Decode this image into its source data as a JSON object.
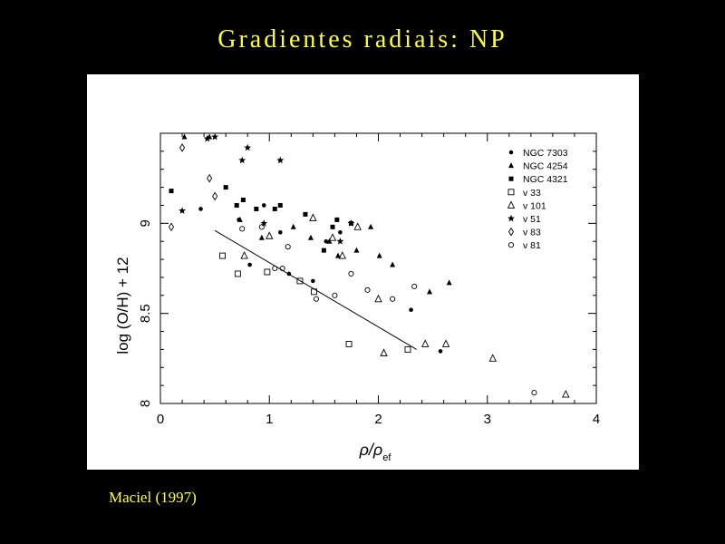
{
  "slide": {
    "title": "Gradientes radiais: NP",
    "credit": "Maciel  (1997)"
  },
  "chart_data": {
    "type": "scatter",
    "title": "",
    "xlabel": "ρ/ρ",
    "xlabel_sub": "ef",
    "ylabel": "log (O/H) + 12",
    "xlim": [
      0,
      4
    ],
    "ylim": [
      8,
      9.5
    ],
    "xticks": [
      {
        "v": 0,
        "label": "0"
      },
      {
        "v": 1,
        "label": "1"
      },
      {
        "v": 2,
        "label": "2"
      },
      {
        "v": 3,
        "label": "3"
      },
      {
        "v": 4,
        "label": "4"
      }
    ],
    "yticks": [
      {
        "v": 8,
        "label": "8"
      },
      {
        "v": 8.5,
        "label": "8.5"
      },
      {
        "v": 9,
        "label": "9"
      }
    ],
    "grid": false,
    "legend_position": "top-right",
    "fit_line": {
      "x": [
        0.5,
        2.35
      ],
      "y": [
        8.96,
        8.3
      ]
    },
    "series": [
      {
        "name": "NGC 7303",
        "marker": "filled-circle",
        "x": [
          0.37,
          0.72,
          0.82,
          0.95,
          1.1,
          1.18,
          1.4,
          1.52,
          1.65,
          2.3,
          2.57
        ],
        "y": [
          9.08,
          9.02,
          8.77,
          9.1,
          8.95,
          8.72,
          8.68,
          8.9,
          8.95,
          8.52,
          8.29
        ],
        "values_label": ""
      },
      {
        "name": "NGC 4254",
        "marker": "filled-triangle",
        "x": [
          0.22,
          0.45,
          0.73,
          0.93,
          1.22,
          1.38,
          1.55,
          1.63,
          1.8,
          1.93,
          2.01,
          2.13,
          2.47,
          2.65
        ],
        "y": [
          9.48,
          9.48,
          9.02,
          8.92,
          8.98,
          8.92,
          8.9,
          8.82,
          8.85,
          8.98,
          8.82,
          8.77,
          8.62,
          8.67
        ],
        "values_label": ""
      },
      {
        "name": "NGC 4321",
        "marker": "filled-square",
        "x": [
          0.1,
          0.6,
          0.7,
          0.76,
          0.88,
          1.05,
          1.1,
          1.33,
          1.5,
          1.58,
          1.62,
          1.75
        ],
        "y": [
          9.18,
          9.2,
          9.1,
          9.13,
          9.08,
          9.08,
          9.1,
          9.05,
          8.85,
          8.98,
          9.02,
          9.0
        ],
        "values_label": ""
      },
      {
        "name": "v 33",
        "marker": "open-square",
        "x": [
          0.57,
          0.71,
          0.98,
          1.28,
          1.41,
          1.73,
          2.27
        ],
        "y": [
          8.82,
          8.72,
          8.73,
          8.68,
          8.62,
          8.33,
          8.3
        ],
        "values_label": ""
      },
      {
        "name": "v 101",
        "marker": "open-triangle",
        "x": [
          0.77,
          1.0,
          1.4,
          1.58,
          1.67,
          1.81,
          2.0,
          2.05,
          2.43,
          2.62,
          3.05,
          3.72
        ],
        "y": [
          8.82,
          8.93,
          9.03,
          8.92,
          8.82,
          8.98,
          8.58,
          8.28,
          8.33,
          8.33,
          8.25,
          8.05
        ],
        "values_label": ""
      },
      {
        "name": "v 51",
        "marker": "star",
        "x": [
          0.2,
          0.43,
          0.5,
          0.75,
          0.8,
          1.1,
          0.95,
          1.65,
          1.75
        ],
        "y": [
          9.07,
          9.47,
          9.48,
          9.35,
          9.42,
          9.35,
          9.0,
          8.9,
          9.0
        ],
        "values_label": ""
      },
      {
        "name": "v 83",
        "marker": "open-diamond",
        "x": [
          0.1,
          0.2,
          0.45,
          0.5
        ],
        "y": [
          8.98,
          9.42,
          9.25,
          9.15
        ],
        "values_label": ""
      },
      {
        "name": "v 81",
        "marker": "open-circle",
        "x": [
          0.75,
          0.93,
          1.05,
          1.12,
          1.17,
          1.43,
          1.6,
          1.75,
          1.9,
          2.13,
          2.33,
          3.43
        ],
        "y": [
          8.97,
          8.98,
          8.75,
          8.75,
          8.87,
          8.58,
          8.6,
          8.72,
          8.63,
          8.58,
          8.65,
          8.06
        ],
        "values_label": ""
      }
    ]
  }
}
